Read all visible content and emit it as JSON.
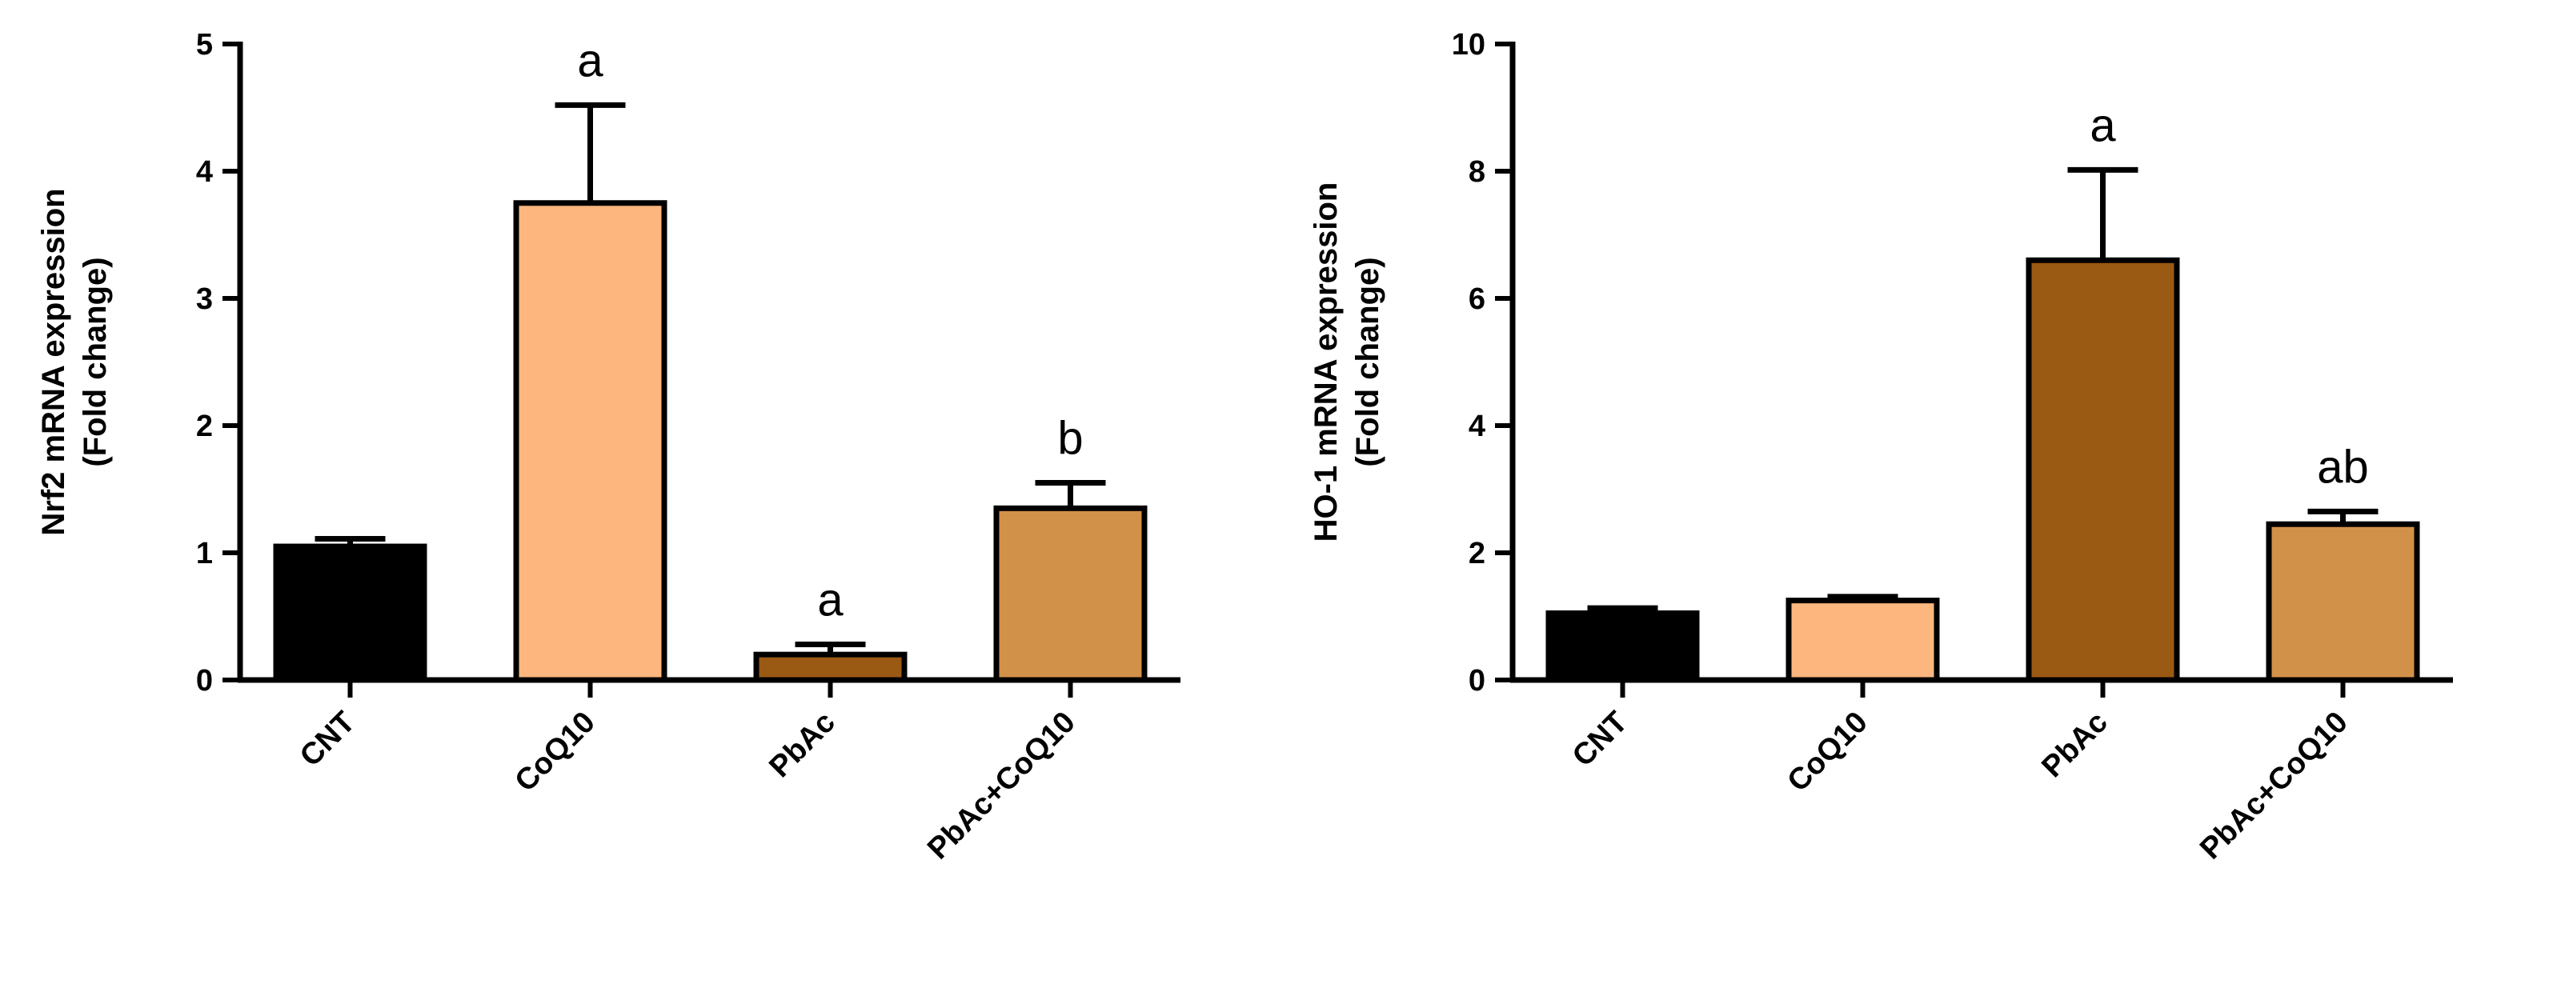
{
  "chart_data": [
    {
      "type": "bar",
      "ylabel_line1": "Nrf2 mRNA expression",
      "ylabel_line2": "(Fold change)",
      "xlabel": "",
      "ylim": [
        0,
        5
      ],
      "yticks": [
        "0",
        "1",
        "2",
        "3",
        "4",
        "5"
      ],
      "categories": [
        "CNT",
        "CoQ10",
        "PbAc",
        "PbAc+CoQ10"
      ],
      "values": [
        1.05,
        3.75,
        0.2,
        1.35
      ],
      "errors": [
        0.06,
        0.77,
        0.08,
        0.2
      ],
      "significance": [
        "",
        "a",
        "a",
        "b"
      ],
      "colors": [
        "#000000",
        "#FDB77E",
        "#9B5A13",
        "#D29149"
      ]
    },
    {
      "type": "bar",
      "ylabel_line1": "HO-1 mRNA expression",
      "ylabel_line2": "(Fold change)",
      "xlabel": "",
      "ylim": [
        0,
        10
      ],
      "yticks": [
        "0",
        "2",
        "4",
        "6",
        "8",
        "10"
      ],
      "categories": [
        "CNT",
        "CoQ10",
        "PbAc",
        "PbAc+CoQ10"
      ],
      "values": [
        1.05,
        1.25,
        6.6,
        2.45
      ],
      "errors": [
        0.08,
        0.06,
        1.42,
        0.2
      ],
      "significance": [
        "",
        "",
        "a",
        "ab"
      ],
      "colors": [
        "#000000",
        "#FDB77E",
        "#9B5A13",
        "#D29149"
      ]
    }
  ]
}
